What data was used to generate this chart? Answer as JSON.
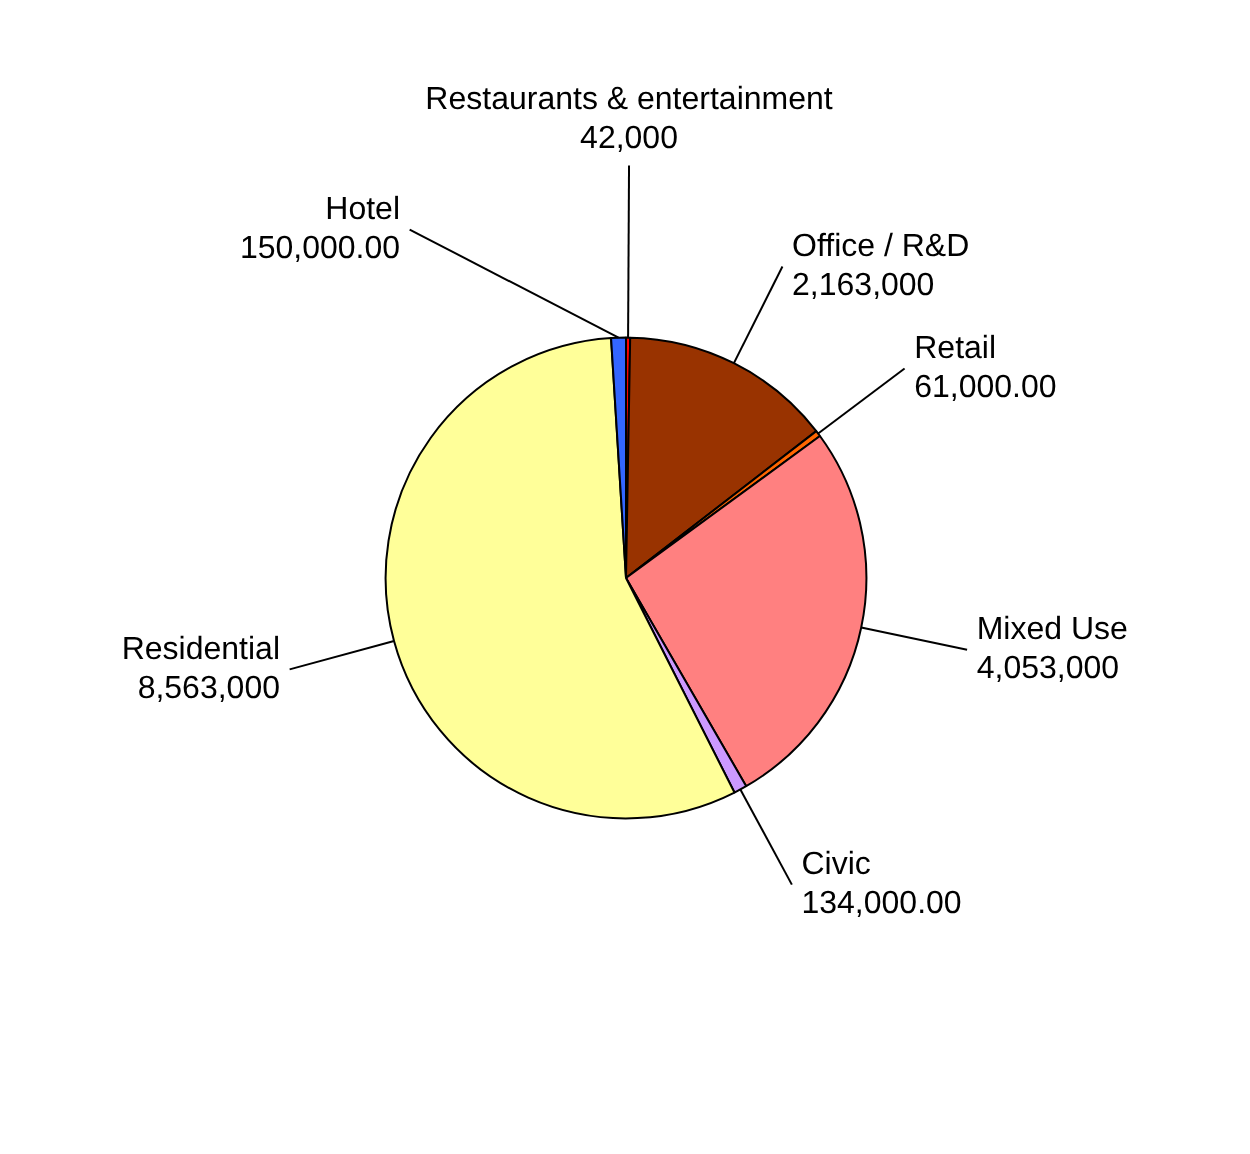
{
  "chart_data": {
    "type": "pie",
    "categories": [
      "Restaurants & entertainment",
      "Office / R&D",
      "Retail",
      "Mixed Use",
      "Civic",
      "Residential",
      "Hotel"
    ],
    "values": [
      42000,
      2163000,
      61000,
      4053000,
      134000,
      8563000,
      150000
    ],
    "value_labels": [
      "42,000",
      "2,163,000",
      "61,000.00",
      "4,053,000",
      "134,000.00",
      "8,563,000",
      "150,000.00"
    ],
    "colors": [
      "#ff0000",
      "#993300",
      "#ff6600",
      "#ff8080",
      "#cc99ff",
      "#ffff99",
      "#3366ff"
    ]
  }
}
